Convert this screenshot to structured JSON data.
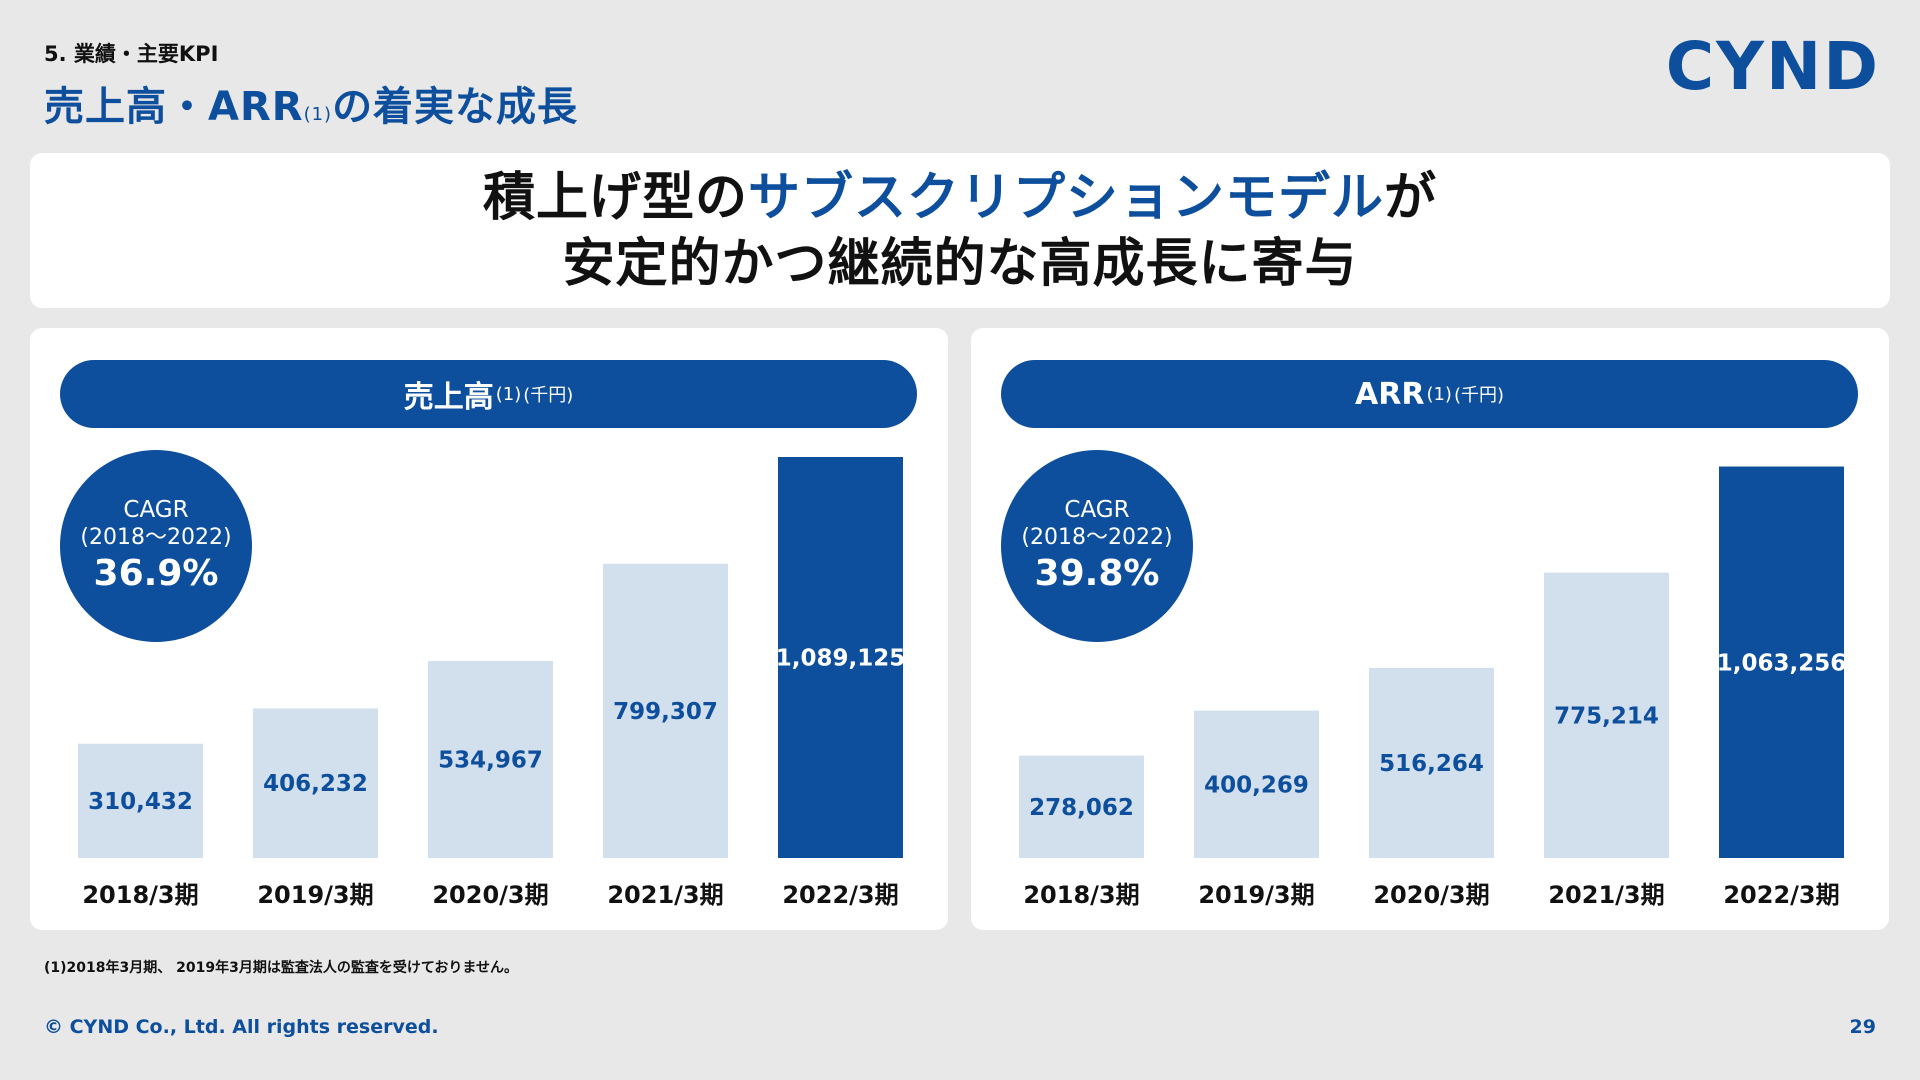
{
  "header": {
    "section": "5. 業績・主要KPI",
    "title_main": "売上高・ARR",
    "title_note": "(1)",
    "title_end": "の着実な成長",
    "logo": "CYND"
  },
  "headline": {
    "line1_pre": "積上げ型の",
    "line1_accent": "サブスクリプションモデル",
    "line1_post": "が",
    "line2": "安定的かつ継続的な高成長に寄与"
  },
  "colors": {
    "accent": "#0d4f9c",
    "bar_light": "#d2dfed",
    "bar_dark": "#0d4f9c"
  },
  "chart_data": [
    {
      "type": "bar",
      "title": "売上高",
      "title_note": "(1)",
      "unit": "(千円)",
      "cagr_label": "CAGR",
      "cagr_period": "(2018～2022)",
      "cagr_value": "36.9%",
      "categories": [
        "2018/3期",
        "2019/3期",
        "2020/3期",
        "2021/3期",
        "2022/3期"
      ],
      "values": [
        310432,
        406232,
        534967,
        799307,
        1089125
      ],
      "labels": [
        "310,432",
        "406,232",
        "534,967",
        "799,307",
        "1,089,125"
      ],
      "highlight_index": 4
    },
    {
      "type": "bar",
      "title": "ARR",
      "title_note": "(1)",
      "unit": "(千円)",
      "cagr_label": "CAGR",
      "cagr_period": "(2018～2022)",
      "cagr_value": "39.8%",
      "categories": [
        "2018/3期",
        "2019/3期",
        "2020/3期",
        "2021/3期",
        "2022/3期"
      ],
      "values": [
        278062,
        400269,
        516264,
        775214,
        1063256
      ],
      "labels": [
        "278,062",
        "400,269",
        "516,264",
        "775,214",
        "1,063,256"
      ],
      "highlight_index": 4
    }
  ],
  "footnote": "(1)2018年3月期、 2019年3月期は監査法人の監査を受けておりません。",
  "footer": {
    "copyright": "© CYND Co., Ltd. All rights reserved.",
    "page_number": "29"
  }
}
